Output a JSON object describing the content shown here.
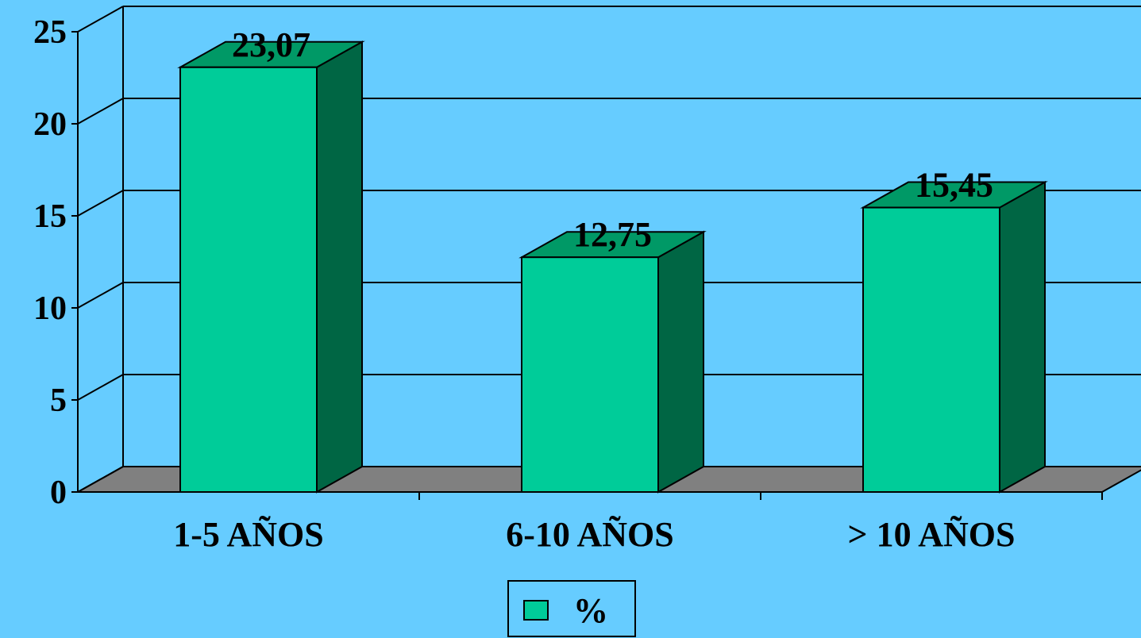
{
  "chart_data": {
    "type": "bar3d",
    "categories": [
      "1-5 AÑOS",
      "6-10 AÑOS",
      "> 10 AÑOS"
    ],
    "series": [
      {
        "name": "%",
        "color": "#00cc99",
        "values": [
          23.07,
          12.75,
          15.45
        ],
        "value_labels": [
          "23,07",
          "12,75",
          "15,45"
        ]
      }
    ],
    "ylim": [
      0,
      25
    ],
    "yticks": [
      0,
      5,
      10,
      15,
      20,
      25
    ],
    "grid": true,
    "legend": "bottom"
  }
}
